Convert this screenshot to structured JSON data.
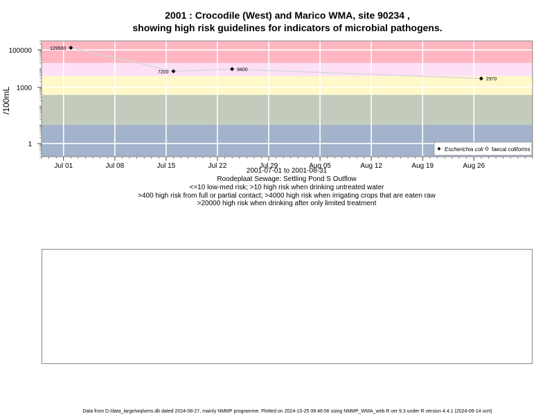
{
  "title_line1": "2001 : Crocodile (West) and Marico WMA, site 90234 ,",
  "title_line2": "showing high risk guidelines for indicators of microbial pathogens.",
  "subtitle": {
    "range": "2001-07-01 to 2001-08-31",
    "site": "Roodeplaat Sewage: Settling Pond S Outflow",
    "g1": "<=10 low-med risk; >10 high risk when drinking untreated water",
    "g2": ">400 high risk from full or partial contact; >4000 high risk when irrigating crops that are eaten raw",
    "g3": ">20000 high risk when drinking after only limited treatment"
  },
  "footer": "Data from D:/data_large/wq/wms.db dated 2024-08-27, mainly NMMP programme. Plotted on 2024-10-25 08:46:56 using NMMP_WMA_web.R ver 9.3 under R version 4.4.1 (2024-06-14 ucrt)",
  "chart_data": {
    "type": "scatter",
    "ylabel": "/100mL",
    "yscale": "log",
    "ylim": [
      0.2,
      300000
    ],
    "xlim": [
      "2001-06-28",
      "2001-09-03"
    ],
    "x_ticks": [
      "2001-07-01",
      "2001-07-08",
      "2001-07-15",
      "2001-07-22",
      "2001-07-29",
      "2001-08-05",
      "2001-08-12",
      "2001-08-19",
      "2001-08-26"
    ],
    "x_tick_labels": [
      "Jul 01",
      "Jul 08",
      "Jul 15",
      "Jul 22",
      "Jul 29",
      "Aug 05",
      "Aug 12",
      "Aug 19",
      "Aug 26"
    ],
    "y_ticks": [
      1,
      1000,
      100000
    ],
    "y_tick_labels": [
      "1",
      "1000",
      "100000"
    ],
    "risk_bands": [
      {
        "from": 0.2,
        "to": 10,
        "color": "#a3b3cb"
      },
      {
        "from": 10,
        "to": 400,
        "color": "#c3cbbc"
      },
      {
        "from": 400,
        "to": 4000,
        "color": "#fff8c8"
      },
      {
        "from": 4000,
        "to": 20000,
        "color": "#fde0f5"
      },
      {
        "from": 20000,
        "to": 300000,
        "color": "#ffb6c1"
      }
    ],
    "series": [
      {
        "name": "Escherichia coli",
        "marker": "filled-diamond",
        "points": [
          {
            "x": "2001-07-02",
            "y": 129500,
            "label": "129500"
          },
          {
            "x": "2001-07-16",
            "y": 7200,
            "label": "7200"
          },
          {
            "x": "2001-07-24",
            "y": 9400,
            "label": "9400"
          },
          {
            "x": "2001-08-27",
            "y": 2970,
            "label": "2970"
          }
        ]
      }
    ],
    "legend": {
      "position": "bottom-right",
      "entries": [
        "Escherichia coli",
        "faecal coliforms"
      ]
    },
    "grid": true
  }
}
